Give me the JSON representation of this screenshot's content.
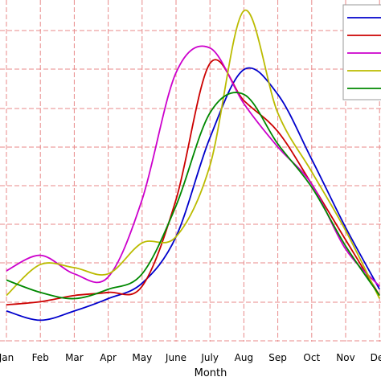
{
  "chart_data": {
    "type": "line",
    "title": "",
    "xlabel": "Month",
    "ylabel": "",
    "categories": [
      "Jan",
      "Feb",
      "Mar",
      "Apr",
      "May",
      "June",
      "July",
      "Aug",
      "Sep",
      "Oct",
      "Nov",
      "Dec"
    ],
    "ylim": [
      0,
      10
    ],
    "grid": true,
    "legend_position": "top-right",
    "series": [
      {
        "color": "#0000cc",
        "values": [
          0.6,
          0.3,
          0.6,
          1.0,
          1.5,
          3.0,
          6.2,
          8.4,
          7.6,
          5.5,
          3.3,
          1.3
        ]
      },
      {
        "color": "#cc0000",
        "values": [
          0.8,
          0.9,
          1.1,
          1.2,
          1.4,
          4.2,
          8.6,
          7.4,
          6.4,
          4.7,
          2.9,
          1.1
        ]
      },
      {
        "color": "#cc00cc",
        "values": [
          1.9,
          2.4,
          1.8,
          1.7,
          4.2,
          8.3,
          9.1,
          7.3,
          5.9,
          4.7,
          2.6,
          1.4
        ]
      },
      {
        "color": "#bbbb00",
        "values": [
          1.1,
          2.1,
          2.0,
          1.8,
          2.8,
          3.0,
          5.3,
          10.3,
          7.0,
          5.1,
          3.2,
          1.0
        ]
      },
      {
        "color": "#008800",
        "values": [
          1.6,
          1.2,
          1.0,
          1.3,
          1.8,
          4.0,
          7.0,
          7.6,
          6.0,
          4.6,
          2.7,
          1.1
        ]
      }
    ]
  }
}
